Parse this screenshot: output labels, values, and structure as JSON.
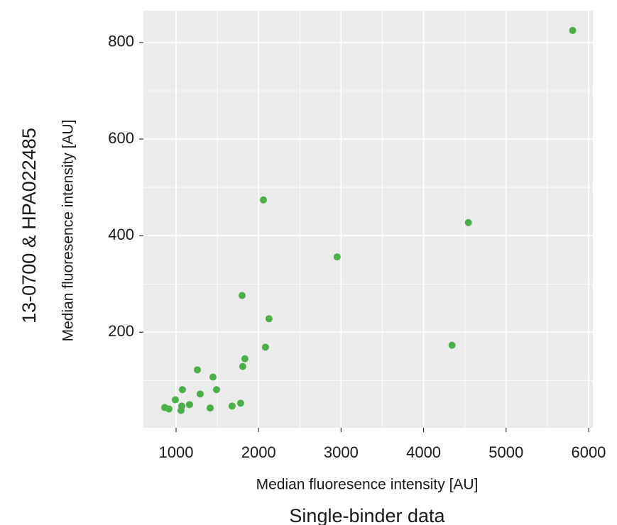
{
  "chart_data": {
    "type": "scatter",
    "x_title": "Single-binder data",
    "xlabel": "Median fluoresence intensity [AU]",
    "y_title": "13-0700 & HPA022485",
    "ylabel": "Median fluoresence intensity [AU]",
    "color": "#4daf4a",
    "x": [
      5807,
      2058,
      4543,
      2952,
      1800,
      2126,
      4345,
      2083,
      1834,
      1808,
      1258,
      1447,
      1490,
      1077,
      1292,
      991,
      1782,
      1679,
      1163,
      1069,
      862,
      914,
      1413,
      1060
    ],
    "values": [
      825,
      474,
      427,
      356,
      276,
      228,
      173,
      169,
      145,
      129,
      122,
      107,
      81,
      81,
      72,
      60,
      53,
      47,
      50,
      47,
      44,
      41,
      43,
      38
    ],
    "xlim": [
      604,
      6052
    ],
    "xticks": [
      1000,
      2000,
      3000,
      4000,
      5000,
      6000
    ],
    "ylim": [
      2,
      866
    ],
    "yticks": [
      200,
      400,
      600,
      800
    ],
    "grid": true
  }
}
